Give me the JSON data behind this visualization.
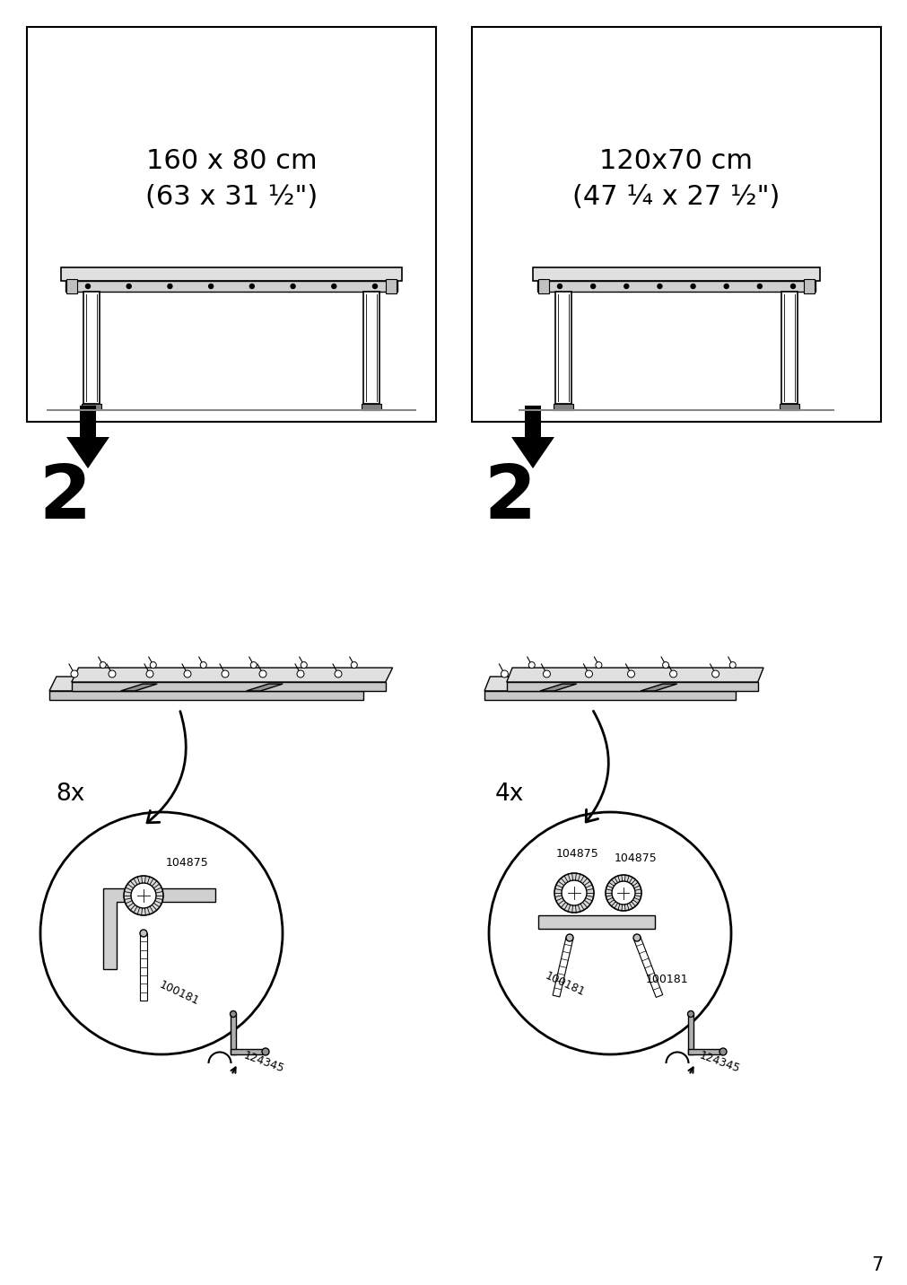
{
  "bg_color": "#ffffff",
  "page_number": "7",
  "box1_text_line1": "160 x 80 cm",
  "box1_text_line2": "(63 x 31 ½\")",
  "box2_text_line1": "120x70 cm",
  "box2_text_line2": "(47 ¼ x 27 ½\")",
  "step_number": "2",
  "count_left": "8x",
  "count_right": "4x",
  "part_nut": "104875",
  "part_bolt": "100181",
  "part_key": "124345",
  "line_color": "#000000",
  "gray_color": "#888888",
  "rail_color": "#c8c8c8",
  "rail_dark": "#909090",
  "rail_light": "#e0e0e0"
}
